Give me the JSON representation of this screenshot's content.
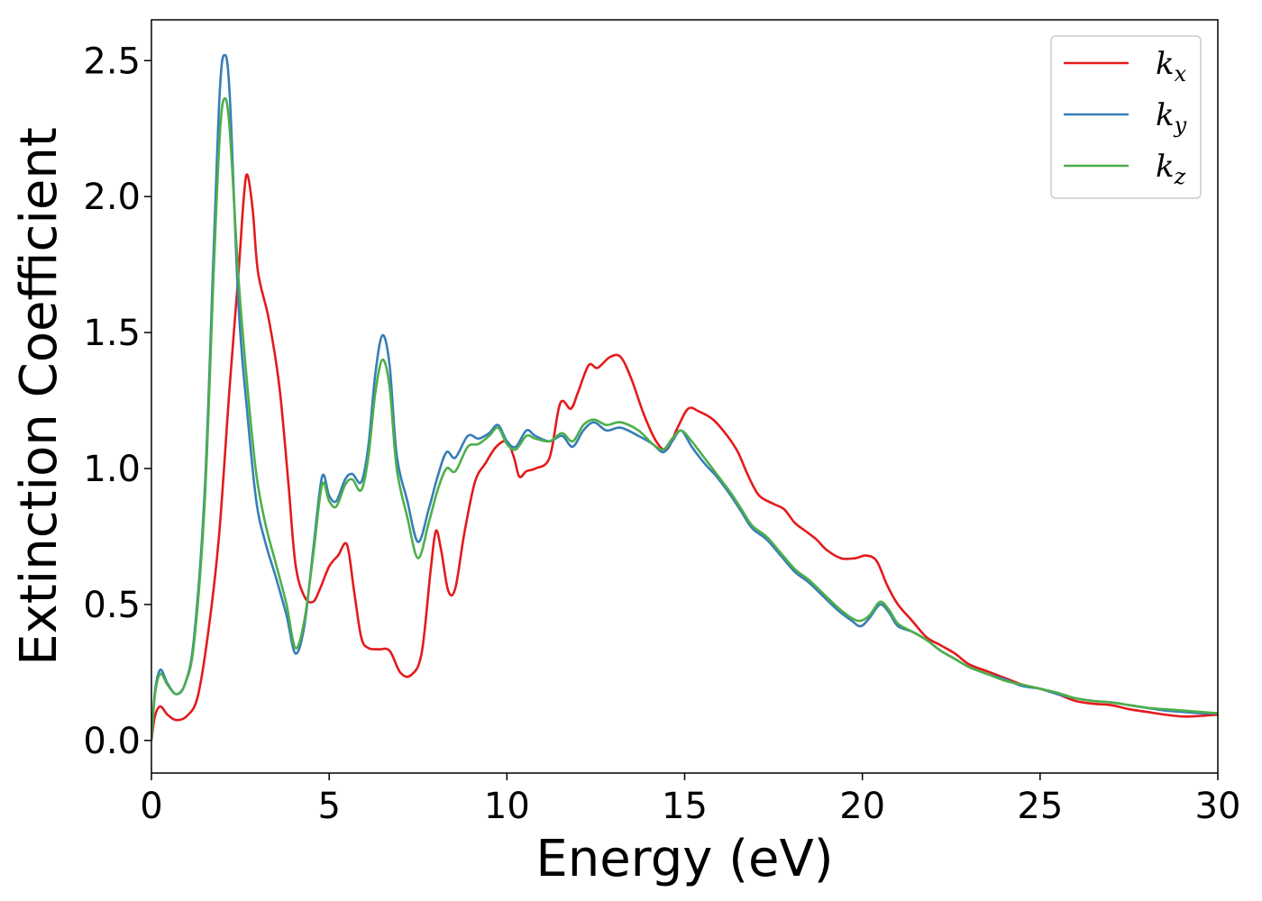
{
  "chart_data": {
    "type": "line",
    "xlabel": "Energy (eV)",
    "ylabel": "Extinction Coefficient",
    "xlim": [
      0,
      30
    ],
    "ylim": [
      -0.12,
      2.65
    ],
    "xticks": [
      0,
      5,
      10,
      15,
      20,
      25,
      30
    ],
    "xtick_labels": [
      "0",
      "5",
      "10",
      "15",
      "20",
      "25",
      "30"
    ],
    "yticks": [
      0.0,
      0.5,
      1.0,
      1.5,
      2.0,
      2.5
    ],
    "ytick_labels": [
      "0.0",
      "0.5",
      "1.0",
      "1.5",
      "2.0",
      "2.5"
    ],
    "grid": false,
    "legend_position": "top-right",
    "series": [
      {
        "name": "k_x",
        "label_main": "k",
        "label_sub": "x",
        "color": "#e41a1c",
        "points": [
          [
            0,
            0
          ],
          [
            0.1,
            0.09
          ],
          [
            0.25,
            0.125
          ],
          [
            0.45,
            0.095
          ],
          [
            0.7,
            0.075
          ],
          [
            1.0,
            0.09
          ],
          [
            1.3,
            0.16
          ],
          [
            1.6,
            0.4
          ],
          [
            1.9,
            0.75
          ],
          [
            2.2,
            1.3
          ],
          [
            2.45,
            1.72
          ],
          [
            2.6,
            2.0
          ],
          [
            2.7,
            2.08
          ],
          [
            2.85,
            1.95
          ],
          [
            3.0,
            1.72
          ],
          [
            3.3,
            1.55
          ],
          [
            3.6,
            1.3
          ],
          [
            3.85,
            0.95
          ],
          [
            4.05,
            0.65
          ],
          [
            4.3,
            0.53
          ],
          [
            4.55,
            0.51
          ],
          [
            4.75,
            0.56
          ],
          [
            5.0,
            0.64
          ],
          [
            5.25,
            0.68
          ],
          [
            5.5,
            0.72
          ],
          [
            5.7,
            0.55
          ],
          [
            5.9,
            0.38
          ],
          [
            6.1,
            0.34
          ],
          [
            6.4,
            0.335
          ],
          [
            6.7,
            0.33
          ],
          [
            7.0,
            0.25
          ],
          [
            7.3,
            0.24
          ],
          [
            7.6,
            0.32
          ],
          [
            7.85,
            0.62
          ],
          [
            8.0,
            0.77
          ],
          [
            8.15,
            0.7
          ],
          [
            8.35,
            0.55
          ],
          [
            8.55,
            0.56
          ],
          [
            8.8,
            0.76
          ],
          [
            9.1,
            0.95
          ],
          [
            9.4,
            1.02
          ],
          [
            9.7,
            1.08
          ],
          [
            10.0,
            1.1
          ],
          [
            10.2,
            1.04
          ],
          [
            10.35,
            0.97
          ],
          [
            10.55,
            0.99
          ],
          [
            10.8,
            1.0
          ],
          [
            11.2,
            1.04
          ],
          [
            11.5,
            1.24
          ],
          [
            11.8,
            1.22
          ],
          [
            12.0,
            1.28
          ],
          [
            12.3,
            1.38
          ],
          [
            12.55,
            1.37
          ],
          [
            12.9,
            1.41
          ],
          [
            13.2,
            1.41
          ],
          [
            13.5,
            1.33
          ],
          [
            13.85,
            1.2
          ],
          [
            14.2,
            1.1
          ],
          [
            14.5,
            1.07
          ],
          [
            14.8,
            1.15
          ],
          [
            15.1,
            1.22
          ],
          [
            15.4,
            1.21
          ],
          [
            15.8,
            1.18
          ],
          [
            16.2,
            1.12
          ],
          [
            16.5,
            1.06
          ],
          [
            16.8,
            0.97
          ],
          [
            17.1,
            0.9
          ],
          [
            17.5,
            0.87
          ],
          [
            17.8,
            0.85
          ],
          [
            18.1,
            0.8
          ],
          [
            18.4,
            0.77
          ],
          [
            18.7,
            0.74
          ],
          [
            19.0,
            0.7
          ],
          [
            19.4,
            0.67
          ],
          [
            19.8,
            0.67
          ],
          [
            20.1,
            0.68
          ],
          [
            20.4,
            0.66
          ],
          [
            20.7,
            0.57
          ],
          [
            21.0,
            0.5
          ],
          [
            21.4,
            0.44
          ],
          [
            21.8,
            0.38
          ],
          [
            22.2,
            0.35
          ],
          [
            22.6,
            0.32
          ],
          [
            23.0,
            0.28
          ],
          [
            23.5,
            0.255
          ],
          [
            24.0,
            0.23
          ],
          [
            24.5,
            0.205
          ],
          [
            25.0,
            0.19
          ],
          [
            25.5,
            0.17
          ],
          [
            26.0,
            0.145
          ],
          [
            26.5,
            0.135
          ],
          [
            27.0,
            0.13
          ],
          [
            27.5,
            0.115
          ],
          [
            28.0,
            0.105
          ],
          [
            28.5,
            0.095
          ],
          [
            29.0,
            0.088
          ],
          [
            29.5,
            0.09
          ],
          [
            30.0,
            0.095
          ]
        ]
      },
      {
        "name": "k_y",
        "label_main": "k",
        "label_sub": "y",
        "color": "#377eb8",
        "points": [
          [
            0,
            0
          ],
          [
            0.1,
            0.18
          ],
          [
            0.25,
            0.26
          ],
          [
            0.45,
            0.21
          ],
          [
            0.7,
            0.17
          ],
          [
            0.95,
            0.21
          ],
          [
            1.2,
            0.38
          ],
          [
            1.5,
            0.92
          ],
          [
            1.75,
            1.8
          ],
          [
            1.92,
            2.38
          ],
          [
            2.05,
            2.52
          ],
          [
            2.2,
            2.38
          ],
          [
            2.45,
            1.6
          ],
          [
            2.7,
            1.2
          ],
          [
            2.95,
            0.88
          ],
          [
            3.2,
            0.73
          ],
          [
            3.5,
            0.6
          ],
          [
            3.8,
            0.46
          ],
          [
            4.05,
            0.32
          ],
          [
            4.3,
            0.42
          ],
          [
            4.55,
            0.7
          ],
          [
            4.8,
            0.97
          ],
          [
            5.0,
            0.9
          ],
          [
            5.2,
            0.88
          ],
          [
            5.45,
            0.96
          ],
          [
            5.65,
            0.98
          ],
          [
            5.9,
            0.95
          ],
          [
            6.1,
            1.08
          ],
          [
            6.3,
            1.35
          ],
          [
            6.5,
            1.49
          ],
          [
            6.7,
            1.38
          ],
          [
            6.9,
            1.05
          ],
          [
            7.2,
            0.88
          ],
          [
            7.5,
            0.73
          ],
          [
            7.8,
            0.85
          ],
          [
            8.05,
            0.97
          ],
          [
            8.3,
            1.06
          ],
          [
            8.55,
            1.04
          ],
          [
            8.9,
            1.12
          ],
          [
            9.2,
            1.11
          ],
          [
            9.5,
            1.13
          ],
          [
            9.75,
            1.16
          ],
          [
            10.0,
            1.1
          ],
          [
            10.25,
            1.08
          ],
          [
            10.55,
            1.14
          ],
          [
            10.8,
            1.12
          ],
          [
            11.2,
            1.1
          ],
          [
            11.55,
            1.12
          ],
          [
            11.85,
            1.08
          ],
          [
            12.15,
            1.14
          ],
          [
            12.45,
            1.17
          ],
          [
            12.8,
            1.14
          ],
          [
            13.2,
            1.15
          ],
          [
            13.7,
            1.12
          ],
          [
            14.1,
            1.09
          ],
          [
            14.4,
            1.06
          ],
          [
            14.65,
            1.1
          ],
          [
            14.9,
            1.14
          ],
          [
            15.2,
            1.08
          ],
          [
            15.55,
            1.02
          ],
          [
            15.9,
            0.97
          ],
          [
            16.3,
            0.9
          ],
          [
            16.6,
            0.84
          ],
          [
            16.9,
            0.78
          ],
          [
            17.3,
            0.74
          ],
          [
            17.7,
            0.68
          ],
          [
            18.1,
            0.62
          ],
          [
            18.5,
            0.58
          ],
          [
            18.9,
            0.53
          ],
          [
            19.3,
            0.48
          ],
          [
            19.7,
            0.44
          ],
          [
            19.95,
            0.42
          ],
          [
            20.2,
            0.45
          ],
          [
            20.5,
            0.5
          ],
          [
            20.75,
            0.47
          ],
          [
            21.0,
            0.42
          ],
          [
            21.4,
            0.4
          ],
          [
            21.8,
            0.37
          ],
          [
            22.2,
            0.33
          ],
          [
            22.6,
            0.3
          ],
          [
            23.0,
            0.27
          ],
          [
            23.5,
            0.245
          ],
          [
            24.0,
            0.225
          ],
          [
            24.5,
            0.2
          ],
          [
            25.0,
            0.19
          ],
          [
            25.5,
            0.17
          ],
          [
            26.0,
            0.155
          ],
          [
            26.5,
            0.145
          ],
          [
            27.0,
            0.14
          ],
          [
            27.5,
            0.13
          ],
          [
            28.0,
            0.12
          ],
          [
            28.5,
            0.11
          ],
          [
            29.0,
            0.105
          ],
          [
            29.5,
            0.1
          ],
          [
            30.0,
            0.1
          ]
        ]
      },
      {
        "name": "k_z",
        "label_main": "k",
        "label_sub": "z",
        "color": "#4daf4a",
        "points": [
          [
            0,
            0
          ],
          [
            0.1,
            0.17
          ],
          [
            0.25,
            0.245
          ],
          [
            0.45,
            0.205
          ],
          [
            0.7,
            0.17
          ],
          [
            0.95,
            0.21
          ],
          [
            1.2,
            0.36
          ],
          [
            1.5,
            0.88
          ],
          [
            1.75,
            1.72
          ],
          [
            1.92,
            2.22
          ],
          [
            2.05,
            2.36
          ],
          [
            2.2,
            2.25
          ],
          [
            2.45,
            1.7
          ],
          [
            2.7,
            1.3
          ],
          [
            2.95,
            0.98
          ],
          [
            3.2,
            0.8
          ],
          [
            3.5,
            0.65
          ],
          [
            3.8,
            0.5
          ],
          [
            4.05,
            0.34
          ],
          [
            4.3,
            0.44
          ],
          [
            4.55,
            0.68
          ],
          [
            4.8,
            0.94
          ],
          [
            5.0,
            0.88
          ],
          [
            5.2,
            0.86
          ],
          [
            5.45,
            0.94
          ],
          [
            5.65,
            0.96
          ],
          [
            5.9,
            0.92
          ],
          [
            6.1,
            1.04
          ],
          [
            6.3,
            1.28
          ],
          [
            6.5,
            1.4
          ],
          [
            6.7,
            1.3
          ],
          [
            6.9,
            1.0
          ],
          [
            7.2,
            0.82
          ],
          [
            7.5,
            0.67
          ],
          [
            7.8,
            0.8
          ],
          [
            8.05,
            0.92
          ],
          [
            8.3,
            1.0
          ],
          [
            8.55,
            0.99
          ],
          [
            8.9,
            1.08
          ],
          [
            9.2,
            1.09
          ],
          [
            9.5,
            1.12
          ],
          [
            9.75,
            1.15
          ],
          [
            10.0,
            1.09
          ],
          [
            10.25,
            1.07
          ],
          [
            10.55,
            1.12
          ],
          [
            10.8,
            1.11
          ],
          [
            11.2,
            1.1
          ],
          [
            11.55,
            1.13
          ],
          [
            11.85,
            1.1
          ],
          [
            12.15,
            1.16
          ],
          [
            12.45,
            1.18
          ],
          [
            12.8,
            1.16
          ],
          [
            13.2,
            1.17
          ],
          [
            13.7,
            1.14
          ],
          [
            14.1,
            1.09
          ],
          [
            14.4,
            1.07
          ],
          [
            14.65,
            1.11
          ],
          [
            14.9,
            1.14
          ],
          [
            15.2,
            1.1
          ],
          [
            15.55,
            1.04
          ],
          [
            15.9,
            0.98
          ],
          [
            16.3,
            0.91
          ],
          [
            16.6,
            0.85
          ],
          [
            16.9,
            0.79
          ],
          [
            17.3,
            0.75
          ],
          [
            17.7,
            0.69
          ],
          [
            18.1,
            0.63
          ],
          [
            18.5,
            0.59
          ],
          [
            18.9,
            0.54
          ],
          [
            19.3,
            0.49
          ],
          [
            19.7,
            0.45
          ],
          [
            19.95,
            0.44
          ],
          [
            20.2,
            0.46
          ],
          [
            20.5,
            0.51
          ],
          [
            20.75,
            0.48
          ],
          [
            21.0,
            0.43
          ],
          [
            21.4,
            0.4
          ],
          [
            21.8,
            0.37
          ],
          [
            22.2,
            0.33
          ],
          [
            22.6,
            0.3
          ],
          [
            23.0,
            0.27
          ],
          [
            23.5,
            0.245
          ],
          [
            24.0,
            0.22
          ],
          [
            24.5,
            0.205
          ],
          [
            25.0,
            0.19
          ],
          [
            25.5,
            0.175
          ],
          [
            26.0,
            0.155
          ],
          [
            26.5,
            0.145
          ],
          [
            27.0,
            0.14
          ],
          [
            27.5,
            0.13
          ],
          [
            28.0,
            0.12
          ],
          [
            28.5,
            0.115
          ],
          [
            29.0,
            0.11
          ],
          [
            29.5,
            0.105
          ],
          [
            30.0,
            0.1
          ]
        ]
      }
    ]
  }
}
